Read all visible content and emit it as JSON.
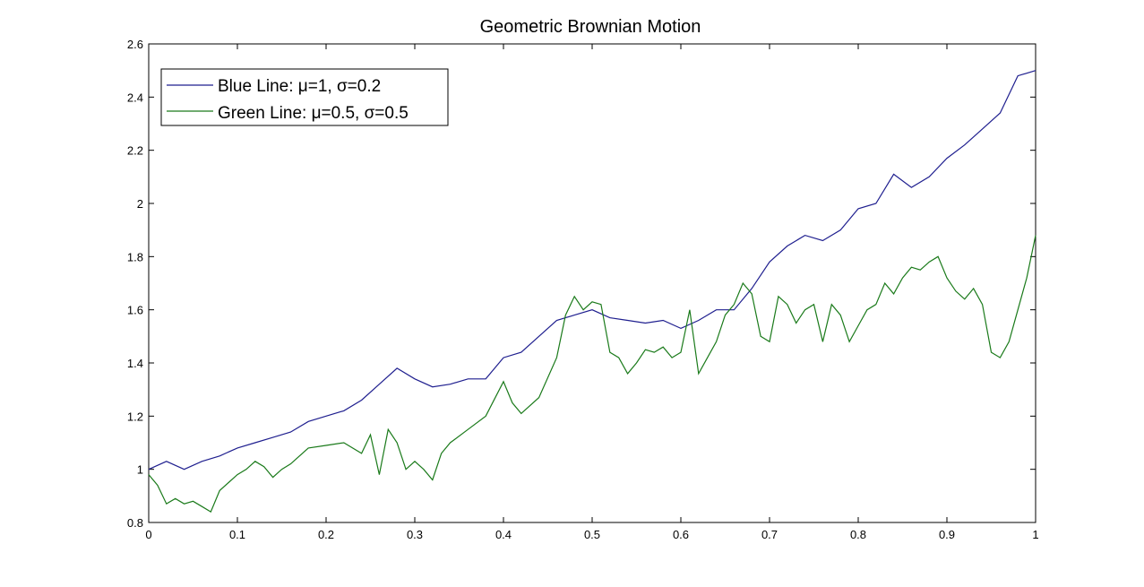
{
  "chart_data": {
    "type": "line",
    "title": "Geometric Brownian Motion",
    "xlabel": "",
    "ylabel": "",
    "xlim": [
      0,
      1
    ],
    "ylim": [
      0.8,
      2.6
    ],
    "xticks": [
      "0",
      "0.1",
      "0.2",
      "0.3",
      "0.4",
      "0.5",
      "0.6",
      "0.7",
      "0.8",
      "0.9",
      "1"
    ],
    "yticks": [
      "0.8",
      "1",
      "1.2",
      "1.4",
      "1.6",
      "1.8",
      "2",
      "2.2",
      "2.4",
      "2.6"
    ],
    "grid": false,
    "legend_position": "top-left",
    "series": [
      {
        "name": "Blue Line: μ=1, σ=0.2",
        "color": "#1f1f8f",
        "x": [
          0,
          0.02,
          0.04,
          0.06,
          0.08,
          0.1,
          0.12,
          0.14,
          0.16,
          0.18,
          0.2,
          0.22,
          0.24,
          0.26,
          0.28,
          0.3,
          0.32,
          0.34,
          0.36,
          0.38,
          0.4,
          0.42,
          0.44,
          0.46,
          0.48,
          0.5,
          0.52,
          0.54,
          0.56,
          0.58,
          0.6,
          0.62,
          0.64,
          0.66,
          0.68,
          0.7,
          0.72,
          0.74,
          0.76,
          0.78,
          0.8,
          0.82,
          0.84,
          0.86,
          0.88,
          0.9,
          0.92,
          0.94,
          0.96,
          0.98,
          1.0
        ],
        "y": [
          1.0,
          1.03,
          1.0,
          1.03,
          1.05,
          1.08,
          1.1,
          1.12,
          1.14,
          1.18,
          1.2,
          1.22,
          1.26,
          1.32,
          1.38,
          1.34,
          1.31,
          1.32,
          1.34,
          1.34,
          1.42,
          1.44,
          1.5,
          1.56,
          1.58,
          1.6,
          1.57,
          1.56,
          1.55,
          1.56,
          1.53,
          1.56,
          1.6,
          1.6,
          1.68,
          1.78,
          1.84,
          1.88,
          1.86,
          1.9,
          1.98,
          2.0,
          2.11,
          2.06,
          2.1,
          2.17,
          2.22,
          2.28,
          2.34,
          2.48,
          2.5
        ]
      },
      {
        "name": "Green Line: μ=0.5, σ=0.5",
        "color": "#1a7a1a",
        "x": [
          0,
          0.01,
          0.02,
          0.03,
          0.04,
          0.05,
          0.06,
          0.07,
          0.08,
          0.09,
          0.1,
          0.11,
          0.12,
          0.13,
          0.14,
          0.15,
          0.16,
          0.18,
          0.2,
          0.22,
          0.24,
          0.25,
          0.26,
          0.27,
          0.28,
          0.29,
          0.3,
          0.31,
          0.32,
          0.33,
          0.34,
          0.36,
          0.38,
          0.4,
          0.41,
          0.42,
          0.44,
          0.46,
          0.47,
          0.48,
          0.49,
          0.5,
          0.51,
          0.52,
          0.53,
          0.54,
          0.55,
          0.56,
          0.57,
          0.58,
          0.59,
          0.6,
          0.61,
          0.62,
          0.63,
          0.64,
          0.65,
          0.66,
          0.67,
          0.68,
          0.69,
          0.7,
          0.71,
          0.72,
          0.73,
          0.74,
          0.75,
          0.76,
          0.77,
          0.78,
          0.79,
          0.8,
          0.81,
          0.82,
          0.83,
          0.84,
          0.85,
          0.86,
          0.87,
          0.88,
          0.89,
          0.9,
          0.91,
          0.92,
          0.93,
          0.94,
          0.95,
          0.96,
          0.97,
          0.98,
          0.99,
          1.0
        ],
        "y": [
          0.98,
          0.94,
          0.87,
          0.89,
          0.87,
          0.88,
          0.86,
          0.84,
          0.92,
          0.95,
          0.98,
          1.0,
          1.03,
          1.01,
          0.97,
          1.0,
          1.02,
          1.08,
          1.09,
          1.1,
          1.06,
          1.13,
          0.98,
          1.15,
          1.1,
          1.0,
          1.03,
          1.0,
          0.96,
          1.06,
          1.1,
          1.15,
          1.2,
          1.33,
          1.25,
          1.21,
          1.27,
          1.42,
          1.58,
          1.65,
          1.6,
          1.63,
          1.62,
          1.44,
          1.42,
          1.36,
          1.4,
          1.45,
          1.44,
          1.46,
          1.42,
          1.44,
          1.6,
          1.36,
          1.42,
          1.48,
          1.58,
          1.62,
          1.7,
          1.66,
          1.5,
          1.48,
          1.65,
          1.62,
          1.55,
          1.6,
          1.62,
          1.48,
          1.62,
          1.58,
          1.48,
          1.54,
          1.6,
          1.62,
          1.7,
          1.66,
          1.72,
          1.76,
          1.75,
          1.78,
          1.8,
          1.72,
          1.67,
          1.64,
          1.68,
          1.62,
          1.44,
          1.42,
          1.48,
          1.6,
          1.72,
          1.88
        ]
      }
    ]
  }
}
